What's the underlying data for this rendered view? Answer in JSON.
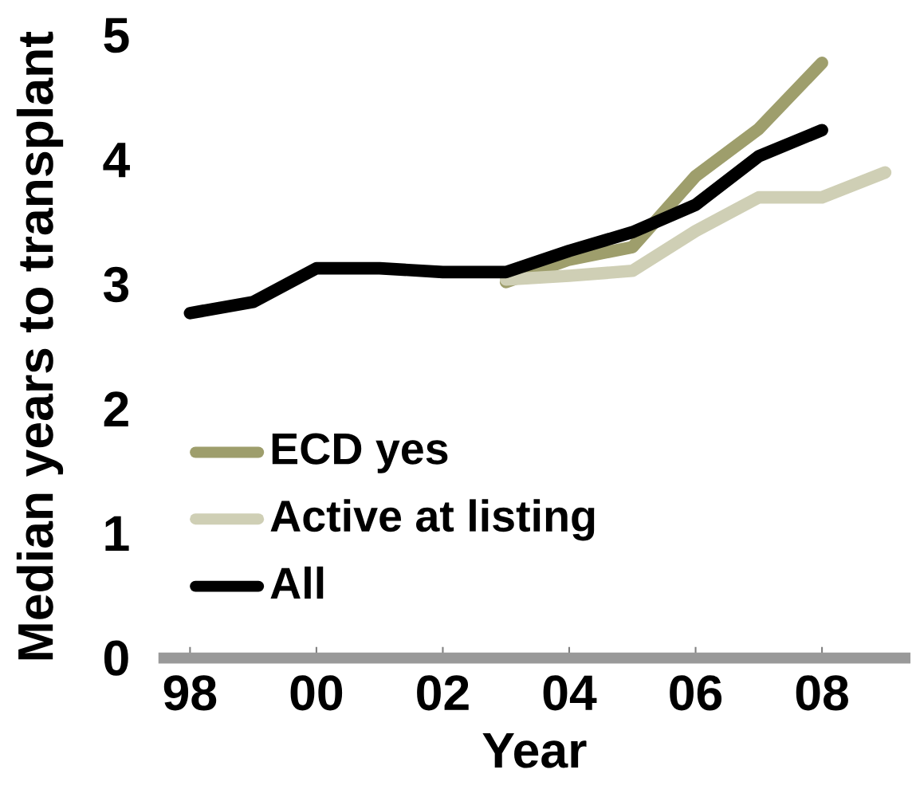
{
  "chart_data": {
    "type": "line",
    "xlabel": "Year",
    "ylabel": "Median years to transplant",
    "x": [
      1998,
      1999,
      2000,
      2001,
      2002,
      2003,
      2004,
      2005,
      2006,
      2007,
      2008,
      2009
    ],
    "series": [
      {
        "name": "ECD yes",
        "color": "#9e9e6c",
        "values": [
          null,
          null,
          null,
          null,
          null,
          3.02,
          3.2,
          3.3,
          3.87,
          4.25,
          4.78,
          null
        ]
      },
      {
        "name": "Active at listing",
        "color": "#cfcfb5",
        "values": [
          null,
          null,
          null,
          null,
          null,
          3.04,
          3.07,
          3.11,
          3.43,
          3.7,
          3.7,
          3.9
        ]
      },
      {
        "name": "All",
        "color": "#000000",
        "values": [
          2.77,
          2.86,
          3.13,
          3.13,
          3.1,
          3.1,
          3.27,
          3.42,
          3.64,
          4.03,
          4.24,
          null
        ]
      }
    ],
    "xlim": [
      1997.5,
      2009.4
    ],
    "ylim": [
      0,
      5
    ],
    "xticks": [
      {
        "value": 1998,
        "label": "98"
      },
      {
        "value": 2000,
        "label": "00"
      },
      {
        "value": 2002,
        "label": "02"
      },
      {
        "value": 2004,
        "label": "04"
      },
      {
        "value": 2006,
        "label": "06"
      },
      {
        "value": 2008,
        "label": "08"
      }
    ],
    "yticks": [
      0,
      1,
      2,
      3,
      4,
      5
    ],
    "legend": "center left",
    "grid": false,
    "marker": "none",
    "line_style": "solid"
  }
}
